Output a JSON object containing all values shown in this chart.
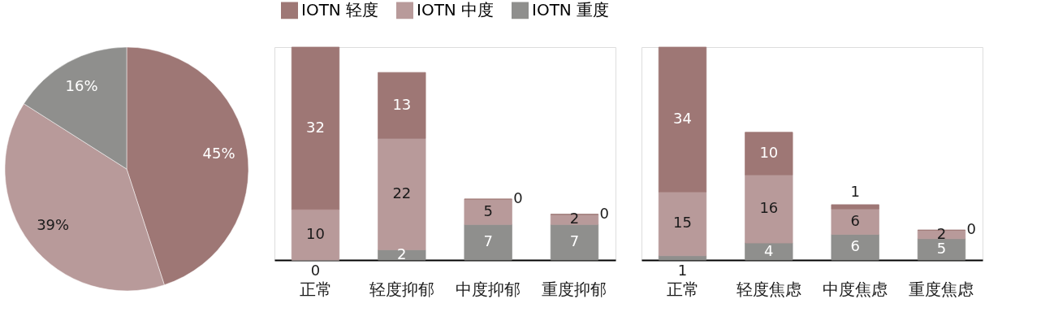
{
  "chart_data": [
    {
      "type": "pie",
      "categories": [
        "IOTN 轻度",
        "IOTN 中度",
        "IOTN 重度"
      ],
      "values": [
        45,
        39,
        16
      ],
      "colors": [
        "#9e7775",
        "#b89a9a",
        "#8f8f8d"
      ],
      "value_labels": [
        "45%",
        "39%",
        "16%"
      ],
      "legend": "top"
    },
    {
      "type": "bar",
      "stacked": true,
      "categories": [
        "正常",
        "轻度抑郁",
        "中度抑郁",
        "重度抑郁"
      ],
      "series": [
        {
          "name": "IOTN 重度",
          "color": "#8f8f8d",
          "values": [
            0,
            2,
            7,
            7
          ]
        },
        {
          "name": "IOTN 中度",
          "color": "#b89a9a",
          "values": [
            10,
            22,
            5,
            2
          ]
        },
        {
          "name": "IOTN 轻度",
          "color": "#9e7775",
          "values": [
            32,
            13,
            0,
            0
          ]
        }
      ],
      "data_labels": true,
      "legend": "top"
    },
    {
      "type": "bar",
      "stacked": true,
      "categories": [
        "正常",
        "轻度焦虑",
        "中度焦虑",
        "重度焦虑"
      ],
      "series": [
        {
          "name": "IOTN 重度",
          "color": "#8f8f8d",
          "values": [
            1,
            4,
            6,
            5
          ]
        },
        {
          "name": "IOTN 中度",
          "color": "#b89a9a",
          "values": [
            15,
            16,
            6,
            2
          ]
        },
        {
          "name": "IOTN 轻度",
          "color": "#9e7775",
          "values": [
            34,
            10,
            1,
            0
          ]
        }
      ],
      "data_labels": true,
      "legend": "top"
    }
  ]
}
